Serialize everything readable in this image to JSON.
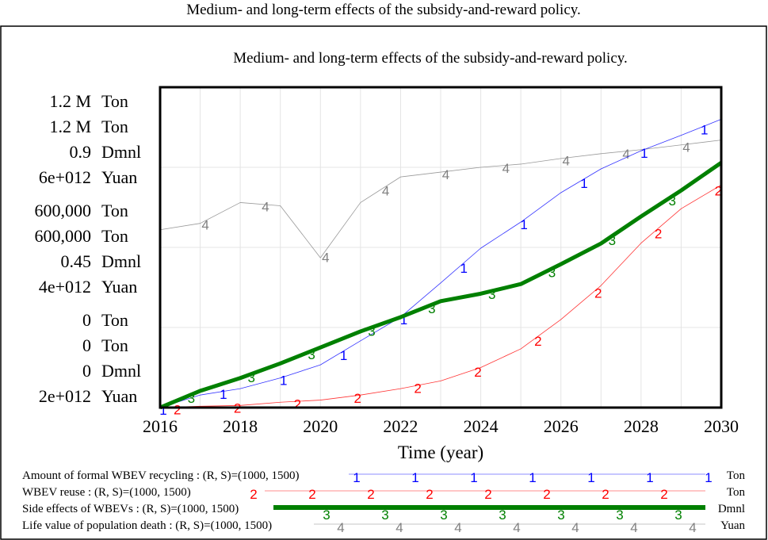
{
  "window_title": "Medium- and long-term effects of the subsidy-and-reward policy.",
  "chart_data": {
    "type": "line",
    "title": "Medium- and long-term effects of the subsidy-and-reward policy.",
    "xlabel": "Time (year)",
    "x": [
      2016,
      2017,
      2018,
      2019,
      2020,
      2021,
      2022,
      2023,
      2024,
      2025,
      2026,
      2027,
      2028,
      2029,
      2030
    ],
    "xlim": [
      2016,
      2030
    ],
    "x_ticks": [
      "2016",
      "2018",
      "2020",
      "2022",
      "2024",
      "2026",
      "2028",
      "2030"
    ],
    "grid": true,
    "legend_position": "bottom",
    "axes": [
      {
        "unit": "Ton",
        "ticks": [
          "0",
          "600,000",
          "1.2 M"
        ],
        "ylim": [
          0,
          1200000
        ]
      },
      {
        "unit": "Ton",
        "ticks": [
          "0",
          "600,000",
          "1.2 M"
        ],
        "ylim": [
          0,
          1200000
        ]
      },
      {
        "unit": "Dmnl",
        "ticks": [
          "0",
          "0.45",
          "0.9"
        ],
        "ylim": [
          0,
          0.9
        ]
      },
      {
        "unit": "Yuan",
        "ticks": [
          "2e+012",
          "4e+012",
          "6e+012"
        ],
        "ylim": [
          2000000000000.0,
          6000000000000.0
        ]
      }
    ],
    "series": [
      {
        "name": "Amount of formal WBEV recycling : (R, S)=(1000, 1500)",
        "marker": "1",
        "unit": "Ton",
        "color": "#0000ff",
        "axis": 0,
        "values": [
          0,
          47000,
          71000,
          111000,
          160000,
          250000,
          339000,
          467000,
          597000,
          695000,
          805000,
          894000,
          962000,
          1020000,
          1080000
        ]
      },
      {
        "name": "WBEV reuse : (R, S)=(1000, 1500)",
        "marker": "2",
        "unit": "Ton",
        "color": "#ff0000",
        "axis": 1,
        "values": [
          0,
          5000,
          8000,
          20000,
          28000,
          47000,
          71000,
          100000,
          150000,
          220000,
          330000,
          457000,
          616000,
          745000,
          834000
        ]
      },
      {
        "name": "Side effects of WBEVs : (R, S)=(1000, 1500)",
        "marker": "3",
        "unit": "Dmnl",
        "color": "#008000",
        "axis": 2,
        "values": [
          0,
          0.047,
          0.083,
          0.124,
          0.169,
          0.214,
          0.254,
          0.299,
          0.32,
          0.347,
          0.403,
          0.461,
          0.537,
          0.61,
          0.688
        ]
      },
      {
        "name": "Life value of population death : (R, S)=(1000, 1500)",
        "marker": "4",
        "unit": "Yuan",
        "color": "#808080",
        "axis": 3,
        "values": [
          4220000000000.0,
          4300000000000.0,
          4560000000000.0,
          4520000000000.0,
          3870000000000.0,
          4560000000000.0,
          4880000000000.0,
          4940000000000.0,
          5000000000000.0,
          5040000000000.0,
          5110000000000.0,
          5170000000000.0,
          5220000000000.0,
          5280000000000.0,
          5340000000000.0
        ]
      }
    ]
  }
}
